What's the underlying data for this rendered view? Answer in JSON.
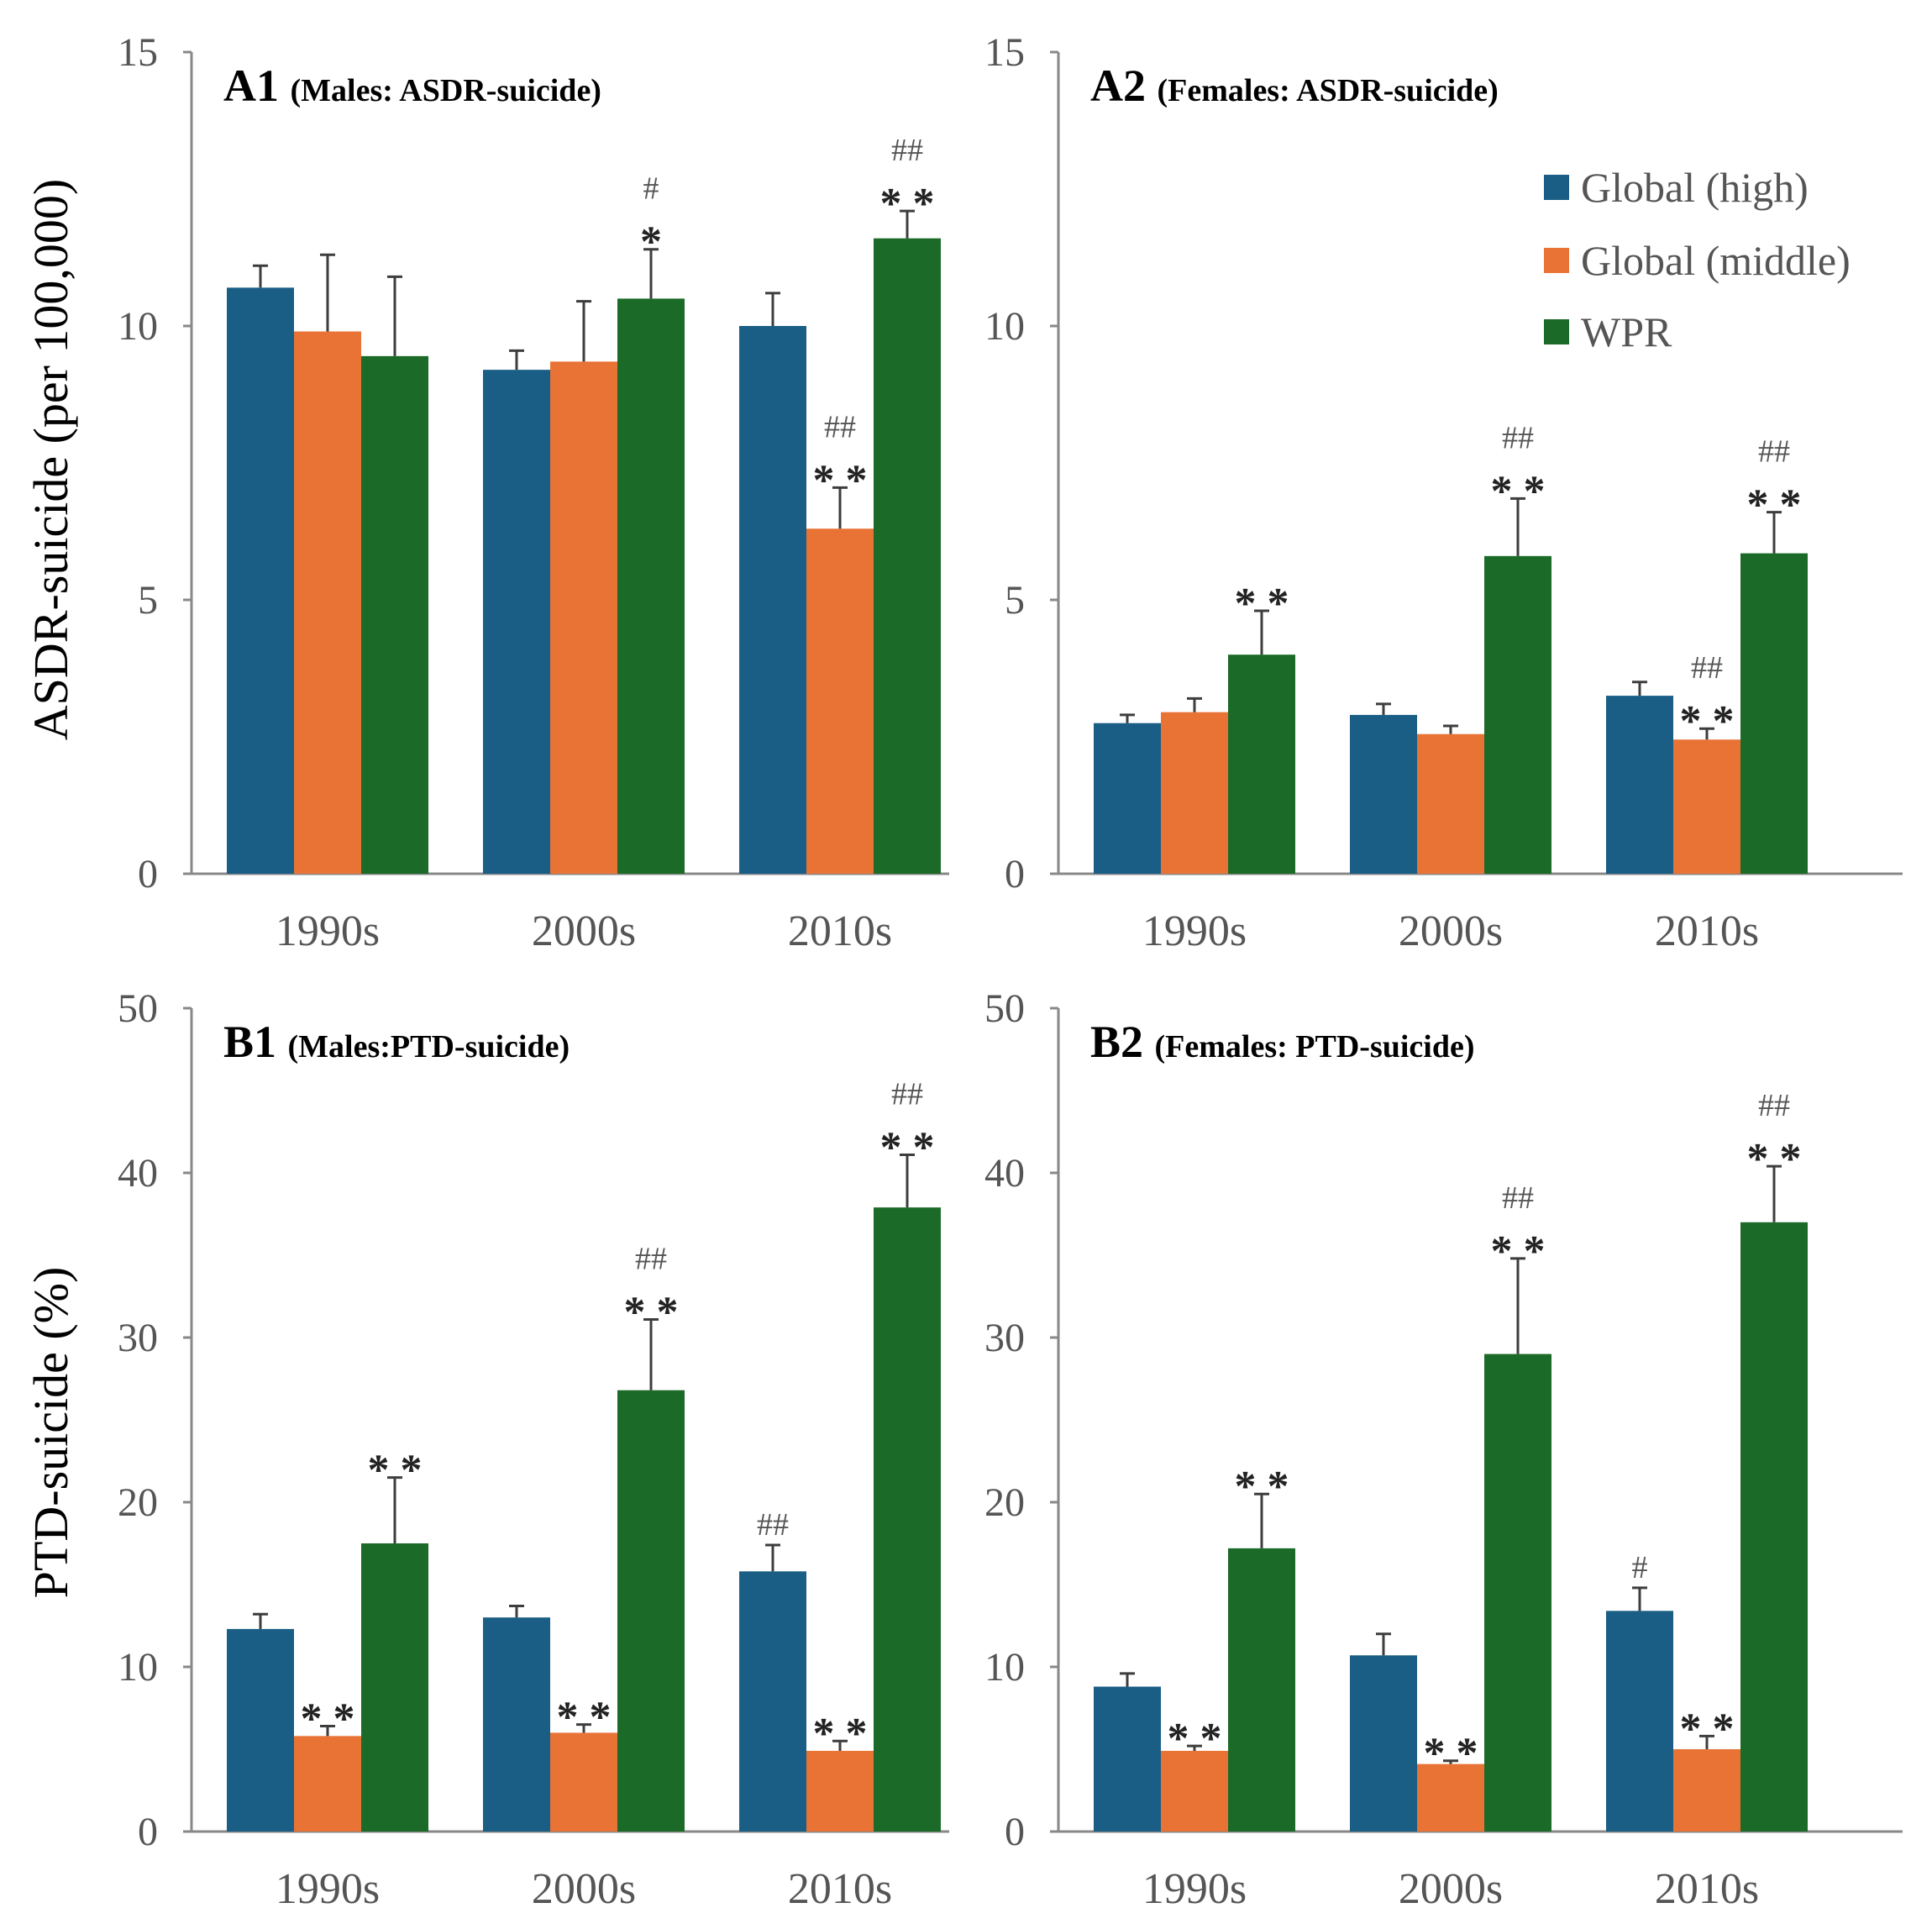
{
  "colors": {
    "global_high": "#1a5e85",
    "global_middle": "#e87335",
    "wpr": "#1c6a28",
    "axis": "#888888",
    "error": "#3d3d3d"
  },
  "legend": [
    {
      "label": "Global (high)",
      "color_key": "global_high"
    },
    {
      "label": "Global (middle)",
      "color_key": "global_middle"
    },
    {
      "label": "WPR",
      "color_key": "wpr"
    }
  ],
  "y_titles": {
    "asdr": "ASDR-suicide (per 100,000)",
    "ptd": "PTD-suicide (%)"
  },
  "chart_data": [
    {
      "id": "A1",
      "type": "bar",
      "panel_label": "A1",
      "subtitle": "(Males: ASDR-suicide)",
      "ylabel": "ASDR-suicide (per 100,000)",
      "ylim": [
        0,
        15
      ],
      "yticks": [
        0,
        5,
        10,
        15
      ],
      "categories": [
        "1990s",
        "2000s",
        "2010s"
      ],
      "series": [
        {
          "name": "Global (high)",
          "values": [
            10.7,
            9.2,
            10.0
          ],
          "errors": [
            0.4,
            0.35,
            0.6
          ],
          "marks": [
            "",
            "",
            ""
          ],
          "hash": [
            "",
            "",
            ""
          ]
        },
        {
          "name": "Global (middle)",
          "values": [
            9.9,
            9.35,
            6.3
          ],
          "errors": [
            1.4,
            1.1,
            0.75
          ],
          "marks": [
            "",
            "",
            "**"
          ],
          "hash": [
            "",
            "",
            "##"
          ]
        },
        {
          "name": "WPR",
          "values": [
            9.45,
            10.5,
            11.6
          ],
          "errors": [
            1.45,
            0.9,
            0.5
          ],
          "marks": [
            "",
            "*",
            "**"
          ],
          "hash": [
            "",
            "#",
            "##"
          ]
        }
      ]
    },
    {
      "id": "A2",
      "type": "bar",
      "panel_label": "A2",
      "subtitle": "(Females: ASDR-suicide)",
      "ylabel": "",
      "ylim": [
        0,
        15
      ],
      "yticks": [
        0,
        5,
        10,
        15
      ],
      "categories": [
        "1990s",
        "2000s",
        "2010s"
      ],
      "series": [
        {
          "name": "Global (high)",
          "values": [
            2.75,
            2.9,
            3.25
          ],
          "errors": [
            0.15,
            0.2,
            0.25
          ],
          "marks": [
            "",
            "",
            ""
          ],
          "hash": [
            "",
            "",
            ""
          ]
        },
        {
          "name": "Global (middle)",
          "values": [
            2.95,
            2.55,
            2.45
          ],
          "errors": [
            0.25,
            0.15,
            0.2
          ],
          "marks": [
            "",
            "",
            "**"
          ],
          "hash": [
            "",
            "",
            "##"
          ]
        },
        {
          "name": "WPR",
          "values": [
            4.0,
            5.8,
            5.85
          ],
          "errors": [
            0.8,
            1.05,
            0.75
          ],
          "marks": [
            "**",
            "**",
            "**"
          ],
          "hash": [
            "",
            "##",
            "##"
          ]
        }
      ]
    },
    {
      "id": "B1",
      "type": "bar",
      "panel_label": "B1",
      "subtitle": "(Males:PTD-suicide)",
      "ylabel": "PTD-suicide (%)",
      "ylim": [
        0,
        50
      ],
      "yticks": [
        0,
        10,
        20,
        30,
        40,
        50
      ],
      "categories": [
        "1990s",
        "2000s",
        "2010s"
      ],
      "series": [
        {
          "name": "Global (high)",
          "values": [
            12.3,
            13.0,
            15.8
          ],
          "errors": [
            0.9,
            0.7,
            1.6
          ],
          "marks": [
            "",
            "",
            ""
          ],
          "hash": [
            "",
            "",
            "##"
          ]
        },
        {
          "name": "Global (middle)",
          "values": [
            5.8,
            6.0,
            4.9
          ],
          "errors": [
            0.6,
            0.5,
            0.6
          ],
          "marks": [
            "**",
            "**",
            "**"
          ],
          "hash": [
            "",
            "",
            ""
          ]
        },
        {
          "name": "WPR",
          "values": [
            17.5,
            26.8,
            37.9
          ],
          "errors": [
            4.0,
            4.3,
            3.2
          ],
          "marks": [
            "**",
            "**",
            "**"
          ],
          "hash": [
            "",
            "##",
            "##"
          ]
        }
      ]
    },
    {
      "id": "B2",
      "type": "bar",
      "panel_label": "B2",
      "subtitle": "(Females: PTD-suicide)",
      "ylabel": "",
      "ylim": [
        0,
        50
      ],
      "yticks": [
        0,
        10,
        20,
        30,
        40,
        50
      ],
      "categories": [
        "1990s",
        "2000s",
        "2010s"
      ],
      "series": [
        {
          "name": "Global (high)",
          "values": [
            8.8,
            10.7,
            13.4
          ],
          "errors": [
            0.8,
            1.3,
            1.4
          ],
          "marks": [
            "",
            "",
            ""
          ],
          "hash": [
            "",
            "",
            "#"
          ]
        },
        {
          "name": "Global (middle)",
          "values": [
            4.9,
            4.1,
            5.0
          ],
          "errors": [
            0.3,
            0.2,
            0.8
          ],
          "marks": [
            "**",
            "**",
            "**"
          ],
          "hash": [
            "",
            "",
            ""
          ]
        },
        {
          "name": "WPR",
          "values": [
            17.2,
            29.0,
            37.0
          ],
          "errors": [
            3.3,
            5.8,
            3.4
          ],
          "marks": [
            "**",
            "**",
            "**"
          ],
          "hash": [
            "",
            "##",
            "##"
          ]
        }
      ]
    }
  ]
}
